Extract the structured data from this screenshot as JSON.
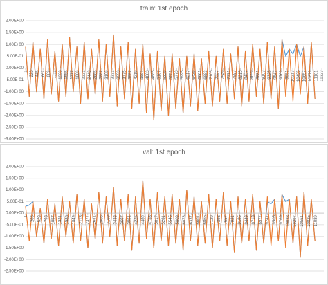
{
  "chart_data": [
    {
      "type": "line",
      "title": "train: 1st epoch",
      "grid": true,
      "xlim": [
        1,
        11400
      ],
      "ylim": [
        -3,
        2
      ],
      "yticks": [
        {
          "value": -3,
          "label": "-3.00E+00"
        },
        {
          "value": -2.5,
          "label": "-2.50E+00"
        },
        {
          "value": -2,
          "label": "-2.00E+00"
        },
        {
          "value": -1.5,
          "label": "-1.50E+00"
        },
        {
          "value": -1,
          "label": "-1.00E+00"
        },
        {
          "value": -0.5,
          "label": "-5.00E-01"
        },
        {
          "value": 0,
          "label": "0.00E+00"
        },
        {
          "value": 0.5,
          "label": "5.00E-01"
        },
        {
          "value": 1,
          "label": "1.00E+00"
        },
        {
          "value": 1.5,
          "label": "1.50E+00"
        },
        {
          "value": 2,
          "label": "2.00E+00"
        }
      ],
      "xticks": [
        1,
        223,
        445,
        667,
        889,
        1111,
        1333,
        1555,
        1777,
        1999,
        2221,
        2443,
        2665,
        2887,
        3109,
        3331,
        3553,
        3775,
        3997,
        4219,
        4441,
        4663,
        4885,
        5107,
        5329,
        5551,
        5773,
        5995,
        6217,
        6439,
        6661,
        6883,
        7105,
        7327,
        7549,
        7771,
        7993,
        8215,
        8437,
        8659,
        8881,
        9103,
        9325,
        9547,
        9769,
        9991,
        10213,
        10435,
        10657,
        10879,
        11101,
        11323
      ],
      "x": [
        1,
        141,
        281,
        421,
        561,
        701,
        841,
        981,
        1121,
        1261,
        1401,
        1541,
        1681,
        1821,
        1961,
        2101,
        2241,
        2381,
        2521,
        2661,
        2801,
        2941,
        3081,
        3221,
        3361,
        3501,
        3641,
        3781,
        3921,
        4061,
        4201,
        4341,
        4481,
        4621,
        4761,
        4901,
        5041,
        5181,
        5321,
        5461,
        5601,
        5741,
        5881,
        6021,
        6161,
        6301,
        6441,
        6581,
        6721,
        6861,
        7001,
        7141,
        7281,
        7421,
        7561,
        7701,
        7841,
        7981,
        8121,
        8261,
        8401,
        8541,
        8681,
        8821,
        8961,
        9101,
        9241,
        9381,
        9521,
        9661,
        9801,
        9941,
        10081,
        10221,
        10361,
        10501,
        10641,
        10781,
        10921,
        11061
      ],
      "series": [
        {
          "color": "#5B9BD5",
          "values": [
            0.9,
            -1.2,
            1.1,
            -1.0,
            0.8,
            -1.3,
            1.2,
            -1.1,
            0.7,
            -1.4,
            1.0,
            -1.2,
            1.3,
            -1.0,
            0.9,
            -1.5,
            1.1,
            -1.3,
            0.8,
            -1.1,
            1.2,
            -1.4,
            1.0,
            -1.2,
            1.4,
            -1.6,
            0.9,
            -1.3,
            1.1,
            -1.7,
            0.8,
            -1.5,
            1.0,
            -1.9,
            0.6,
            -2.2,
            0.7,
            -1.8,
            0.5,
            -2.0,
            0.6,
            -1.7,
            0.4,
            -1.9,
            0.5,
            -1.6,
            0.6,
            -1.8,
            0.4,
            -1.5,
            0.7,
            -1.6,
            0.5,
            -1.4,
            0.8,
            -1.5,
            0.6,
            -1.3,
            0.9,
            -1.6,
            0.7,
            -1.4,
            1.0,
            -1.2,
            0.8,
            -1.5,
            1.1,
            -1.3,
            0.9,
            -1.7,
            1.2,
            0.5,
            0.8,
            0.6,
            1.0,
            0.5,
            0.9,
            -1.5,
            1.1,
            -1.3
          ]
        },
        {
          "color": "#ED7D31",
          "values": [
            0.9,
            -1.2,
            1.1,
            -1.0,
            0.8,
            -1.3,
            1.2,
            -1.1,
            0.7,
            -1.4,
            1.0,
            -1.2,
            1.3,
            -1.0,
            0.9,
            -1.5,
            1.1,
            -1.3,
            0.8,
            -1.1,
            1.2,
            -1.4,
            1.0,
            -1.2,
            1.4,
            -1.6,
            0.9,
            -1.3,
            1.1,
            -1.7,
            0.8,
            -1.5,
            1.0,
            -1.9,
            0.6,
            -2.2,
            0.7,
            -1.8,
            0.5,
            -2.0,
            0.6,
            -1.7,
            0.4,
            -1.9,
            0.5,
            -1.6,
            0.6,
            -1.8,
            0.4,
            -1.5,
            0.7,
            -1.6,
            0.5,
            -1.4,
            0.8,
            -1.5,
            0.6,
            -1.3,
            0.9,
            -1.6,
            0.7,
            -1.4,
            1.0,
            -1.2,
            0.8,
            -1.5,
            1.1,
            -1.3,
            0.9,
            -1.7,
            1.2,
            -1.2,
            0.8,
            -1.4,
            1.0,
            -1.1,
            0.9,
            -1.5,
            1.1,
            -1.3
          ]
        }
      ]
    },
    {
      "type": "line",
      "title": "val: 1st epoch",
      "grid": true,
      "xlim": [
        1,
        11400
      ],
      "ylim": [
        -2.5,
        2
      ],
      "yticks": [
        {
          "value": -2.5,
          "label": "-2.50E+00"
        },
        {
          "value": -2,
          "label": "-2.00E+00"
        },
        {
          "value": -1.5,
          "label": "-1.50E+00"
        },
        {
          "value": -1,
          "label": "-1.00E+00"
        },
        {
          "value": -0.5,
          "label": "-5.00E-01"
        },
        {
          "value": 0,
          "label": "0.00E+00"
        },
        {
          "value": 0.5,
          "label": "5.00E-01"
        },
        {
          "value": 1,
          "label": "1.00E+00"
        },
        {
          "value": 1.5,
          "label": "1.50E+00"
        },
        {
          "value": 2,
          "label": "2.00E+00"
        }
      ],
      "xticks": [
        1,
        265,
        529,
        793,
        1057,
        1321,
        1585,
        1849,
        2113,
        2377,
        2641,
        2905,
        3169,
        3433,
        3697,
        3961,
        4225,
        4489,
        4753,
        5017,
        5281,
        5545,
        5809,
        6073,
        6337,
        6601,
        6865,
        7129,
        7393,
        7657,
        7921,
        8185,
        8449,
        8713,
        8977,
        9241,
        9505,
        9769,
        10033,
        10297,
        10561,
        10825,
        11089
      ],
      "x": [
        1,
        141,
        281,
        421,
        561,
        701,
        841,
        981,
        1121,
        1261,
        1401,
        1541,
        1681,
        1821,
        1961,
        2101,
        2241,
        2381,
        2521,
        2661,
        2801,
        2941,
        3081,
        3221,
        3361,
        3501,
        3641,
        3781,
        3921,
        4061,
        4201,
        4341,
        4481,
        4621,
        4761,
        4901,
        5041,
        5181,
        5321,
        5461,
        5601,
        5741,
        5881,
        6021,
        6161,
        6301,
        6441,
        6581,
        6721,
        6861,
        7001,
        7141,
        7281,
        7421,
        7561,
        7701,
        7841,
        7981,
        8121,
        8261,
        8401,
        8541,
        8681,
        8821,
        8961,
        9101,
        9241,
        9381,
        9521,
        9661,
        9801,
        9941,
        10081,
        10221,
        10361,
        10501,
        10641,
        10781,
        10921,
        11061
      ],
      "series": [
        {
          "color": "#5B9BD5",
          "values": [
            0.3,
            0.35,
            0.5,
            -1.0,
            0.2,
            -1.3,
            0.6,
            -1.1,
            0.4,
            -1.4,
            0.7,
            -1.0,
            0.5,
            -1.3,
            0.8,
            -1.2,
            0.6,
            -1.5,
            0.4,
            -1.1,
            0.9,
            -1.3,
            0.7,
            -1.0,
            1.1,
            -1.4,
            0.6,
            -1.2,
            0.8,
            -1.6,
            0.7,
            -1.3,
            1.4,
            -1.1,
            0.6,
            -1.5,
            0.9,
            -1.2,
            0.7,
            -1.4,
            0.8,
            -1.3,
            0.6,
            -1.6,
            1.0,
            -1.2,
            0.7,
            -1.4,
            0.5,
            -1.3,
            0.8,
            -1.5,
            0.6,
            -1.2,
            0.9,
            -1.4,
            0.5,
            -1.7,
            0.7,
            -1.3,
            0.6,
            -1.2,
            0.8,
            -1.6,
            0.5,
            -1.3,
            0.5,
            0.4,
            0.6,
            -1.2,
            0.8,
            0.5,
            0.6,
            -1.3,
            0.7,
            -1.9,
            0.9,
            -1.4,
            0.6,
            -1.2
          ]
        },
        {
          "color": "#ED7D31",
          "values": [
            0.3,
            -1.2,
            0.5,
            -1.0,
            0.2,
            -1.3,
            0.6,
            -1.1,
            0.4,
            -1.4,
            0.7,
            -1.0,
            0.5,
            -1.3,
            0.8,
            -1.2,
            0.6,
            -1.5,
            0.4,
            -1.1,
            0.9,
            -1.3,
            0.7,
            -1.0,
            1.1,
            -1.4,
            0.6,
            -1.2,
            0.8,
            -1.6,
            0.7,
            -1.3,
            1.4,
            -1.1,
            0.6,
            -1.5,
            0.9,
            -1.2,
            0.7,
            -1.4,
            0.8,
            -1.3,
            0.6,
            -1.6,
            1.0,
            -1.2,
            0.7,
            -1.4,
            0.5,
            -1.3,
            0.8,
            -1.5,
            0.6,
            -1.2,
            0.9,
            -1.4,
            0.5,
            -1.7,
            0.7,
            -1.3,
            0.6,
            -1.2,
            0.8,
            -1.6,
            0.5,
            -1.3,
            0.7,
            -1.4,
            0.6,
            -1.2,
            0.8,
            -1.5,
            0.6,
            -1.3,
            0.7,
            -1.9,
            0.9,
            -1.4,
            0.6,
            -1.2
          ]
        }
      ]
    }
  ]
}
